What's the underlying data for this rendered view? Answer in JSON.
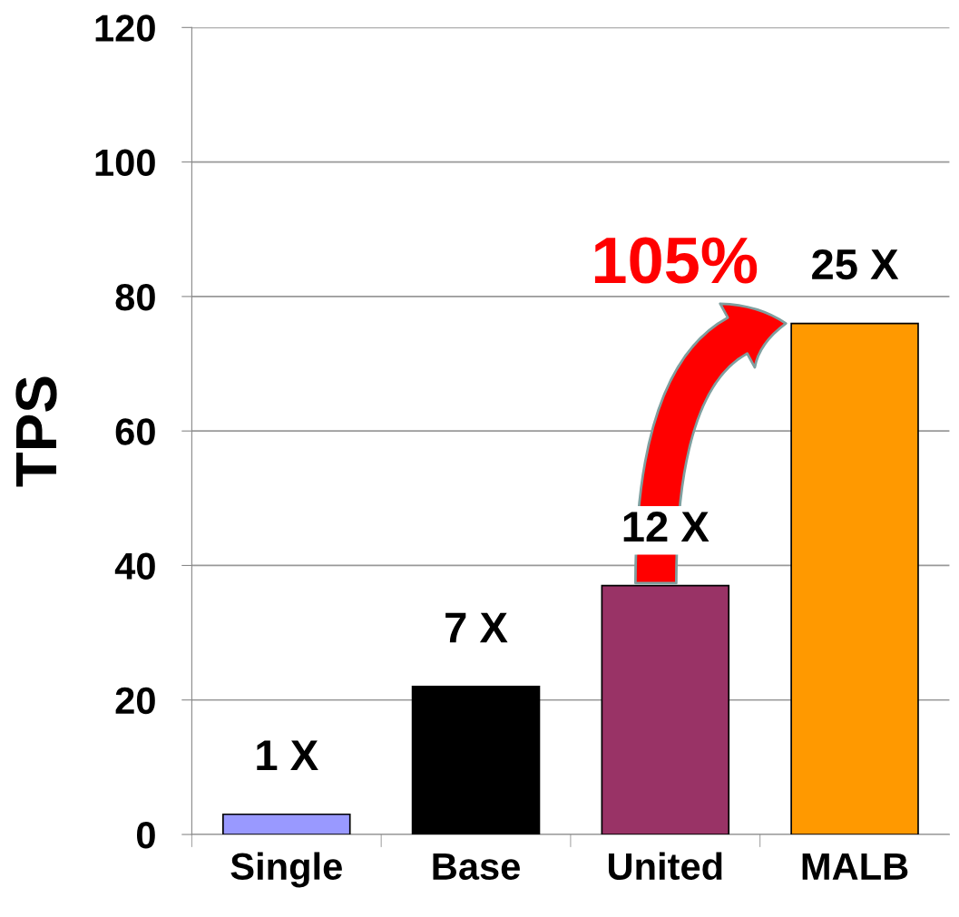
{
  "chart_data": {
    "type": "bar",
    "ylabel": "TPS",
    "categories": [
      "Single",
      "Base",
      "United",
      "MALB"
    ],
    "values": [
      3,
      22,
      37,
      76
    ],
    "colors": [
      "#9999ff",
      "#000000",
      "#993366",
      "#ff9900"
    ],
    "annotations": [
      {
        "text": "1 X",
        "x": "Single",
        "y": 3
      },
      {
        "text": "7 X",
        "x": "Base",
        "y": 22
      },
      {
        "text": "12 X",
        "x": "United",
        "y": 37
      },
      {
        "text": "25 X",
        "x": "MALB",
        "y": 76
      },
      "105%"
    ],
    "ylim": [
      0,
      120
    ],
    "yticks": [
      0,
      20,
      40,
      60,
      80,
      100,
      120
    ],
    "grid": "y"
  }
}
